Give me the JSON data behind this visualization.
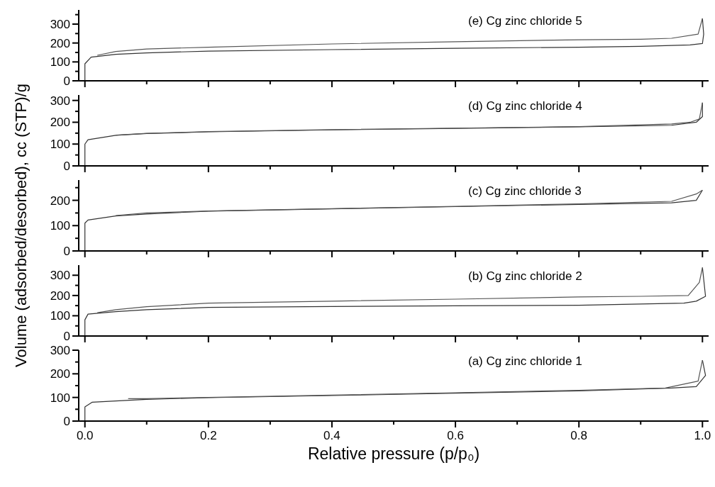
{
  "chart_data": [
    {
      "type": "line",
      "annotations": [
        "(e) Cg zinc chloride 5"
      ],
      "tick_labels": "y",
      "xlim": [
        -0.01,
        1.01
      ],
      "ylim": [
        0,
        375
      ],
      "xticks": [
        0,
        {
          "value": 0.1,
          "label": null
        },
        0.2,
        {
          "value": 0.3,
          "label": null
        },
        0.4,
        {
          "value": 0.5,
          "label": null
        },
        0.6,
        {
          "value": 0.7,
          "label": null
        },
        0.8,
        {
          "value": 0.9,
          "label": null
        },
        1
      ],
      "yticks": [
        0,
        {
          "value": 50,
          "label": null
        },
        100,
        {
          "value": 150,
          "label": null
        },
        200,
        {
          "value": 250,
          "label": null
        },
        300,
        {
          "value": 350,
          "label": null
        }
      ],
      "series": [
        {
          "color": "#333333",
          "x": [
            0,
            0,
            0.01,
            0.05,
            0.1,
            0.2,
            0.4,
            0.6,
            0.8,
            0.9,
            0.98,
            1.0,
            1.002,
            1.0
          ],
          "values": [
            0,
            90,
            125,
            140,
            148,
            157,
            165,
            172,
            178,
            182,
            190,
            197,
            247,
            330
          ]
        },
        {
          "color": "#555555",
          "x": [
            1.0,
            0.993,
            0.95,
            0.9,
            0.8,
            0.6,
            0.4,
            0.2,
            0.1,
            0.05,
            0.02
          ],
          "values": [
            330,
            247,
            225,
            220,
            217,
            207,
            195,
            178,
            168,
            155,
            135
          ]
        }
      ]
    },
    {
      "type": "line",
      "annotations": [
        "(d) Cg zinc chloride 4"
      ],
      "tick_labels": "y",
      "xlim": [
        -0.01,
        1.01
      ],
      "ylim": [
        0,
        325
      ],
      "xticks": [
        0,
        {
          "value": 0.1,
          "label": null
        },
        0.2,
        {
          "value": 0.3,
          "label": null
        },
        0.4,
        {
          "value": 0.5,
          "label": null
        },
        0.6,
        {
          "value": 0.7,
          "label": null
        },
        0.8,
        {
          "value": 0.9,
          "label": null
        },
        1
      ],
      "yticks": [
        0,
        {
          "value": 50,
          "label": null
        },
        100,
        {
          "value": 150,
          "label": null
        },
        200,
        {
          "value": 250,
          "label": null
        },
        300
      ],
      "series": [
        {
          "color": "#333333",
          "x": [
            0,
            0,
            0.005,
            0.05,
            0.1,
            0.2,
            0.4,
            0.6,
            0.8,
            0.95,
            0.99,
            1.0,
            1.0
          ],
          "values": [
            0,
            100,
            120,
            140,
            148,
            156,
            165,
            172,
            179,
            186,
            200,
            226,
            290
          ]
        },
        {
          "color": "#555555",
          "x": [
            1.0,
            0.995,
            0.98,
            0.95,
            0.8,
            0.6,
            0.4,
            0.2,
            0.1,
            0.05
          ],
          "values": [
            290,
            215,
            200,
            192,
            180,
            173,
            166,
            157,
            149,
            141
          ]
        }
      ]
    },
    {
      "type": "line",
      "annotations": [
        "(c) Cg zinc chloride 3"
      ],
      "tick_labels": "y",
      "ylabel": "Volume (adsorbed/desorbed), cc (STP)/g",
      "xlim": [
        -0.01,
        1.01
      ],
      "ylim": [
        0,
        280
      ],
      "xticks": [
        0,
        {
          "value": 0.1,
          "label": null
        },
        0.2,
        {
          "value": 0.3,
          "label": null
        },
        0.4,
        {
          "value": 0.5,
          "label": null
        },
        0.6,
        {
          "value": 0.7,
          "label": null
        },
        0.8,
        {
          "value": 0.9,
          "label": null
        },
        1
      ],
      "yticks": [
        0,
        {
          "value": 50,
          "label": null
        },
        100,
        {
          "value": 150,
          "label": null
        },
        200,
        {
          "value": 250,
          "label": null
        }
      ],
      "series": [
        {
          "color": "#333333",
          "x": [
            0,
            0,
            0.005,
            0.05,
            0.1,
            0.2,
            0.4,
            0.6,
            0.8,
            0.95,
            0.99,
            1.0
          ],
          "values": [
            0,
            110,
            122,
            138,
            146,
            157,
            166,
            175,
            184,
            190,
            200,
            240
          ]
        },
        {
          "color": "#555555",
          "x": [
            1.0,
            0.99,
            0.95,
            0.8,
            0.6,
            0.4,
            0.2,
            0.1,
            0.05
          ],
          "values": [
            240,
            225,
            196,
            186,
            176,
            167,
            158,
            150,
            140
          ]
        }
      ]
    },
    {
      "type": "line",
      "annotations": [
        "(b) Cg zinc chloride 2"
      ],
      "tick_labels": "y",
      "xlim": [
        -0.01,
        1.01
      ],
      "ylim": [
        0,
        350
      ],
      "xticks": [
        0,
        {
          "value": 0.1,
          "label": null
        },
        0.2,
        {
          "value": 0.3,
          "label": null
        },
        0.4,
        {
          "value": 0.5,
          "label": null
        },
        0.6,
        {
          "value": 0.7,
          "label": null
        },
        0.8,
        {
          "value": 0.9,
          "label": null
        },
        1
      ],
      "yticks": [
        0,
        {
          "value": 50,
          "label": null
        },
        100,
        {
          "value": 150,
          "label": null
        },
        200,
        {
          "value": 250,
          "label": null
        },
        300
      ],
      "series": [
        {
          "color": "#333333",
          "x": [
            0,
            0,
            0.005,
            0.05,
            0.1,
            0.2,
            0.4,
            0.6,
            0.8,
            0.97,
            0.99,
            1.005,
            1.0
          ],
          "values": [
            0,
            80,
            108,
            120,
            130,
            141,
            146,
            149,
            152,
            162,
            172,
            196,
            338
          ]
        },
        {
          "color": "#555555",
          "x": [
            1.0,
            0.995,
            0.977,
            0.9,
            0.8,
            0.6,
            0.4,
            0.2,
            0.1,
            0.05,
            0.02
          ],
          "values": [
            338,
            265,
            200,
            196,
            193,
            182,
            172,
            162,
            145,
            130,
            115
          ]
        }
      ]
    },
    {
      "type": "line",
      "annotations": [
        "(a) Cg zinc chloride 1"
      ],
      "xlabel": "Relative pressure (p/p₀)",
      "xlim": [
        -0.01,
        1.01
      ],
      "ylim": [
        0,
        300
      ],
      "xticks": [
        {
          "value": 0,
          "label": "0.0"
        },
        {
          "value": 0.1,
          "label": null
        },
        0.2,
        {
          "value": 0.3,
          "label": null
        },
        0.4,
        {
          "value": 0.5,
          "label": null
        },
        0.6,
        {
          "value": 0.7,
          "label": null
        },
        0.8,
        {
          "value": 0.9,
          "label": null
        },
        {
          "value": 1,
          "label": "1.0"
        }
      ],
      "yticks": [
        0,
        {
          "value": 50,
          "label": null
        },
        100,
        {
          "value": 150,
          "label": null
        },
        200,
        {
          "value": 250,
          "label": null
        },
        300
      ],
      "series": [
        {
          "color": "#333333",
          "x": [
            0,
            0,
            0.012,
            0.05,
            0.1,
            0.2,
            0.4,
            0.6,
            0.8,
            0.95,
            0.99,
            1.005,
            1.0
          ],
          "values": [
            0,
            60,
            80,
            85,
            92,
            99,
            108,
            118,
            128,
            140,
            146,
            193,
            258
          ]
        },
        {
          "color": "#555555",
          "x": [
            1.0,
            0.993,
            0.94,
            0.8,
            0.6,
            0.4,
            0.2,
            0.1,
            0.07
          ],
          "values": [
            258,
            169,
            140,
            130,
            120,
            110,
            100,
            95,
            95
          ]
        }
      ]
    }
  ]
}
